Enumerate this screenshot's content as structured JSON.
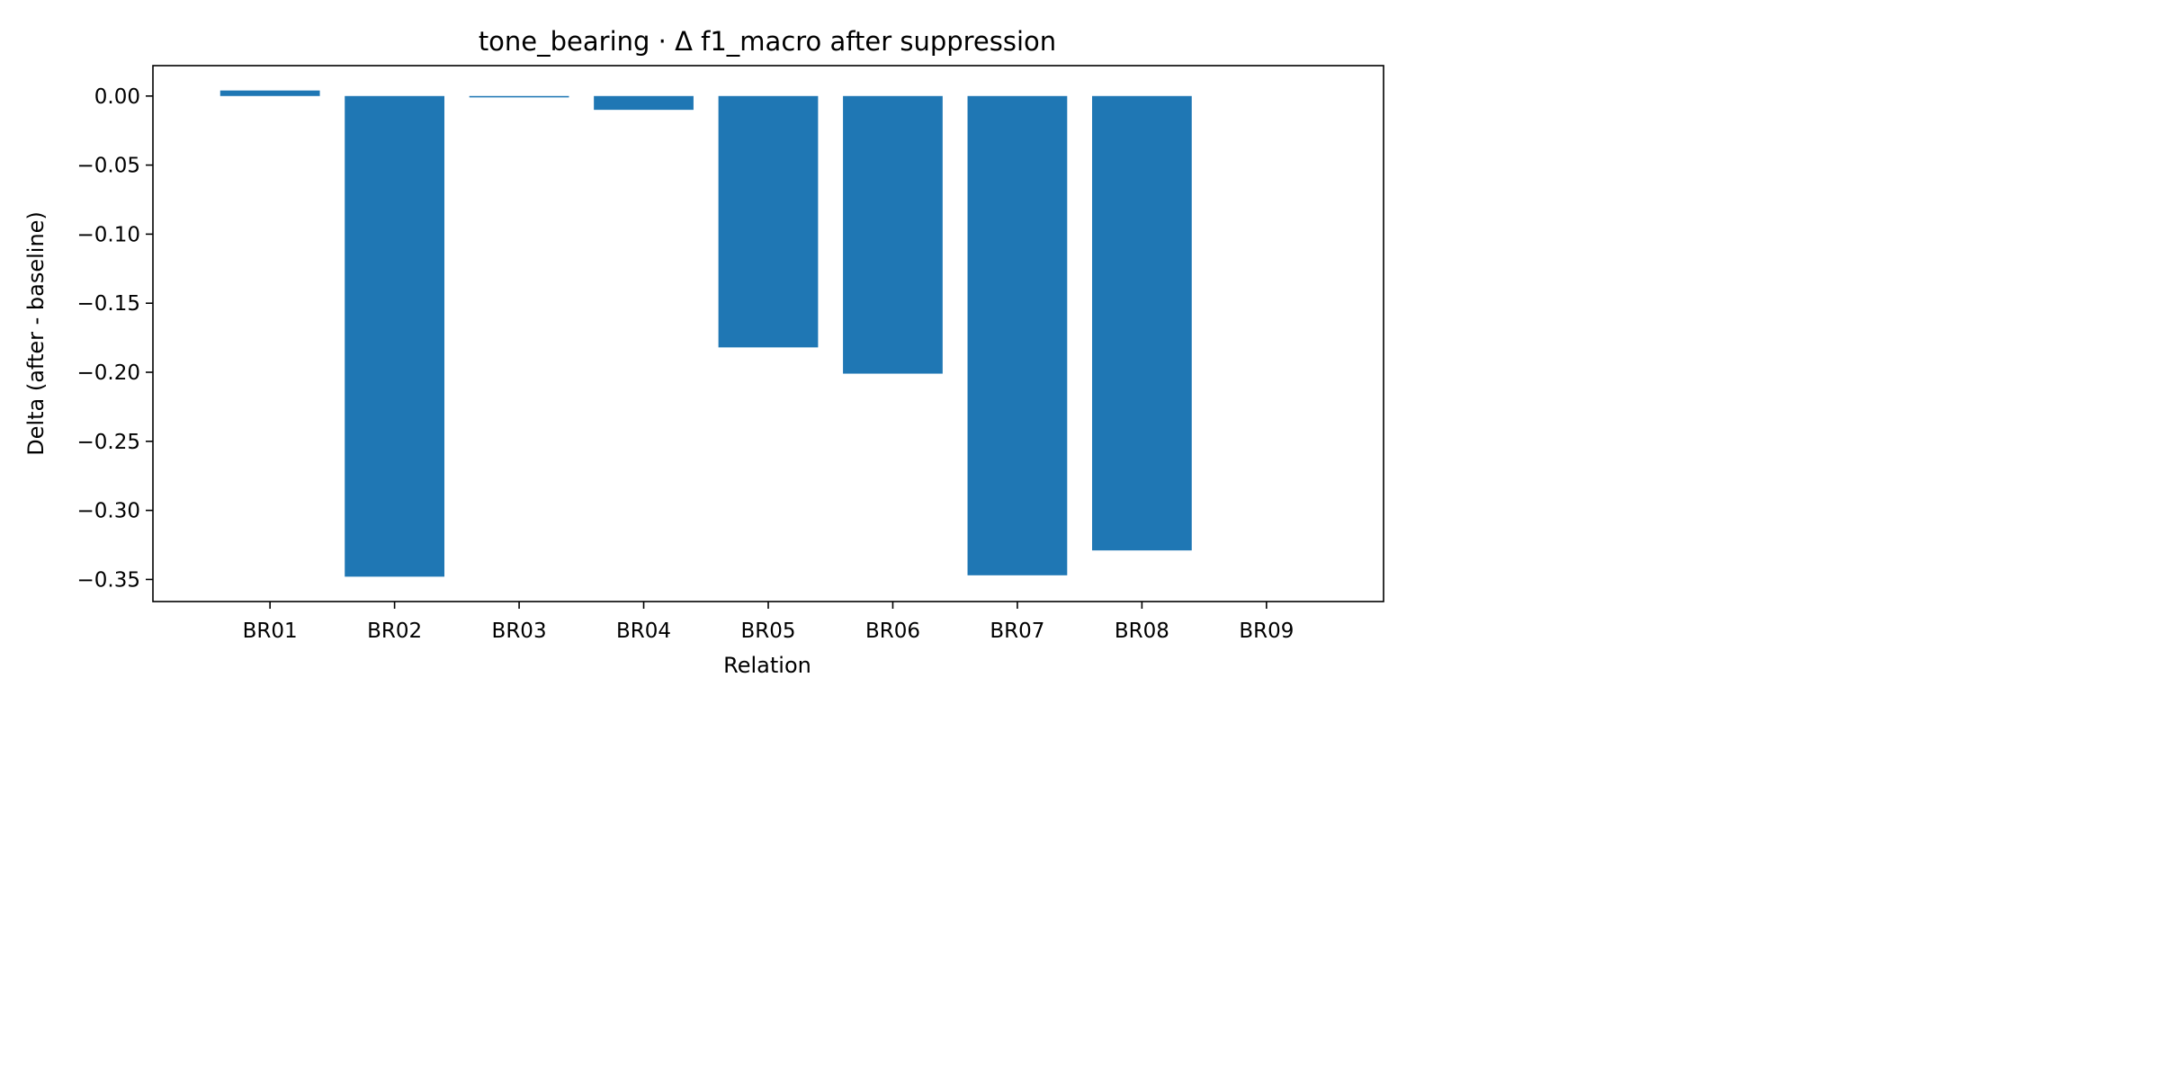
{
  "chart_data": {
    "type": "bar",
    "title": "tone_bearing · Δ f1_macro after suppression",
    "xlabel": "Relation",
    "ylabel": "Delta (after - baseline)",
    "categories": [
      "BR01",
      "BR02",
      "BR03",
      "BR04",
      "BR05",
      "BR06",
      "BR07",
      "BR08",
      "BR09"
    ],
    "values": [
      0.004,
      -0.348,
      -0.001,
      -0.01,
      -0.182,
      -0.201,
      -0.347,
      -0.329,
      0
    ],
    "ylim": [
      -0.366,
      0.022
    ],
    "yticks": [
      0.0,
      -0.05,
      -0.1,
      -0.15,
      -0.2,
      -0.25,
      -0.3,
      -0.35
    ],
    "ytick_labels": [
      "0.00",
      "−0.05",
      "−0.10",
      "−0.15",
      "−0.20",
      "−0.25",
      "−0.30",
      "−0.35"
    ],
    "bar_color": "#1f77b4",
    "grid": false,
    "legend": "none"
  }
}
